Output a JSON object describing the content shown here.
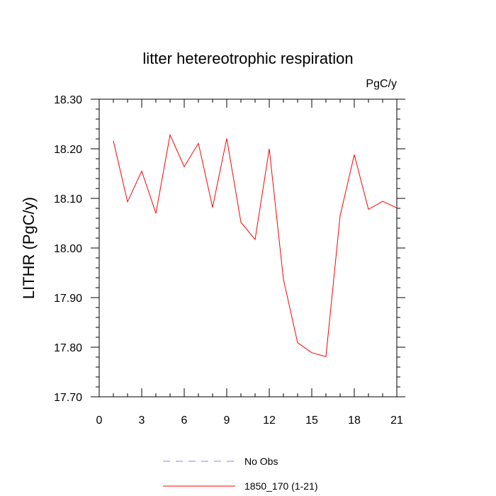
{
  "chart_data": {
    "type": "line",
    "title": "litter hetereotrophic respiration",
    "units_label": "PgC/y",
    "ylabel": "LITHR  (PgC/y)",
    "xlabel": "",
    "xlim": [
      0,
      21
    ],
    "ylim": [
      17.7,
      18.3
    ],
    "x_ticks": [
      "0",
      "3",
      "6",
      "9",
      "12",
      "15",
      "18",
      "21"
    ],
    "x_tick_values": [
      0,
      3,
      6,
      9,
      12,
      15,
      18,
      21
    ],
    "y_ticks": [
      "17.70",
      "17.80",
      "17.90",
      "18.00",
      "18.10",
      "18.20",
      "18.30"
    ],
    "y_tick_values": [
      17.7,
      17.8,
      17.9,
      18.0,
      18.1,
      18.2,
      18.3
    ],
    "grid": false,
    "series": [
      {
        "name": "1850_170 (1-21)",
        "color": "#ff0000",
        "style": "solid",
        "x": [
          1,
          2,
          3,
          4,
          5,
          6,
          7,
          8,
          9,
          10,
          11,
          12,
          13,
          14,
          15,
          16,
          17,
          18,
          19,
          20,
          21
        ],
        "values": [
          18.216,
          18.093,
          18.155,
          18.07,
          18.228,
          18.164,
          18.211,
          18.082,
          18.221,
          18.052,
          18.017,
          18.2,
          17.937,
          17.809,
          17.789,
          17.781,
          18.065,
          18.188,
          18.078,
          18.094,
          18.081
        ]
      }
    ],
    "legend": {
      "placement": "bottom",
      "entries": [
        {
          "label": "No Obs",
          "color": "#8080ff",
          "style": "dashed"
        },
        {
          "label": "1850_170 (1-21)",
          "color": "#ff0000",
          "style": "solid"
        }
      ]
    }
  }
}
